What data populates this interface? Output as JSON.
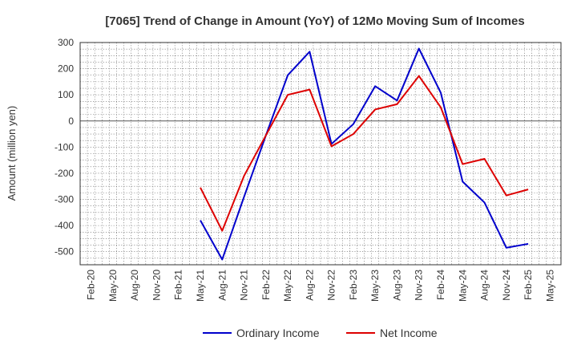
{
  "chart_data": {
    "type": "line",
    "title": "[7065]  Trend of Change in Amount (YoY) of 12Mo Moving Sum of Incomes",
    "xlabel": "",
    "ylabel": "Amount (million yen)",
    "ylim": [
      -550,
      300
    ],
    "yticks": [
      300,
      200,
      100,
      0,
      -100,
      -200,
      -300,
      -400,
      -500
    ],
    "grid": true,
    "legend_position": "bottom-center",
    "categories": [
      "Feb-20",
      "May-20",
      "Aug-20",
      "Nov-20",
      "Feb-21",
      "May-21",
      "Aug-21",
      "Nov-21",
      "Feb-22",
      "May-22",
      "Aug-22",
      "Nov-22",
      "Feb-23",
      "May-23",
      "Aug-23",
      "Nov-23",
      "Feb-24",
      "May-24",
      "Aug-24",
      "Nov-24",
      "Feb-25",
      "May-25"
    ],
    "series": [
      {
        "name": "Ordinary Income",
        "color": "#0000cc",
        "values": [
          null,
          null,
          null,
          null,
          null,
          -380,
          -530,
          -290,
          -55,
          175,
          265,
          -88,
          -12,
          133,
          78,
          277,
          108,
          -232,
          -312,
          -485,
          -470,
          null
        ]
      },
      {
        "name": "Net Income",
        "color": "#dd0000",
        "values": [
          null,
          null,
          null,
          null,
          null,
          -255,
          -420,
          -210,
          -55,
          100,
          120,
          -97,
          -50,
          44,
          64,
          172,
          52,
          -165,
          -145,
          -285,
          -262,
          null
        ]
      }
    ]
  }
}
